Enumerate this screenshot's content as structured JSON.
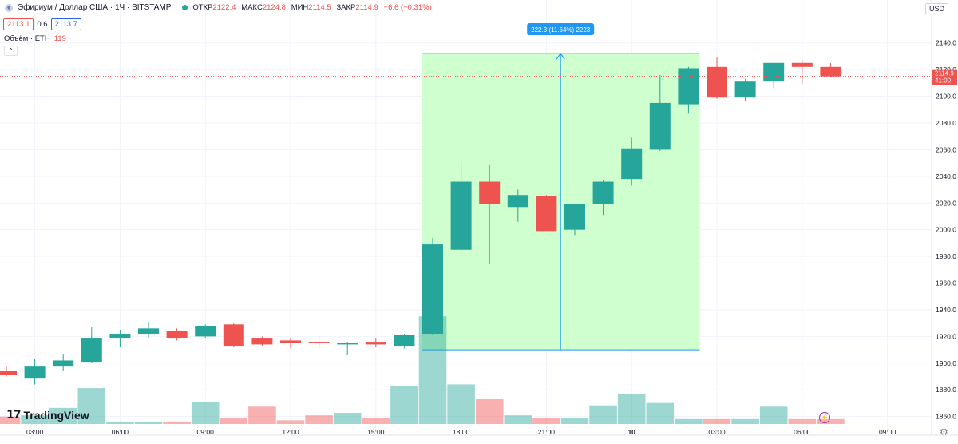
{
  "header": {
    "symbol": "Эфириум / Доллар США · 1Ч · BITSTAMP",
    "open_label": "ОТКР",
    "open": "2122.4",
    "high_label": "МАКС",
    "high": "2124.8",
    "low_label": "МИН",
    "low": "2114.5",
    "close_label": "ЗАКР",
    "close": "2114.9",
    "change": "−6.6 (−0.31%)"
  },
  "quote": {
    "bid": "2113.1",
    "spread": "0.6",
    "ask": "2113.7"
  },
  "volume_indicator": {
    "label": "Объём · ETH",
    "value": "119"
  },
  "collapse_glyph": "⌃",
  "currency": "USD",
  "logo": {
    "mark": "17",
    "text": "TradingView"
  },
  "lightning_glyph": "⚡",
  "gear_glyph": "⚙",
  "colors": {
    "up": "#26a69a",
    "down": "#ef5350",
    "up_vol": "#26a69a",
    "down_vol": "#ef5350",
    "measure_fill": "#ccffcc",
    "measure_line": "#2196f3",
    "grid": "#f0f3fa"
  },
  "chart_data": {
    "type": "candlestick",
    "interval": "1h",
    "y_axis": {
      "range": [
        1855,
        2150
      ],
      "ticks": [
        2140.0,
        2120.0,
        2100.0,
        2080.0,
        2060.0,
        2040.0,
        2020.0,
        2000.0,
        1980.0,
        1960.0,
        1940.0,
        1920.0,
        1900.0,
        1880.0,
        1860.0
      ]
    },
    "x_axis": {
      "ticks": [
        "03:00",
        "06:00",
        "09:00",
        "12:00",
        "15:00",
        "18:00",
        "21:00",
        "10",
        "03:00",
        "06:00",
        "09:00"
      ],
      "tick_bars": [
        1,
        4,
        7,
        10,
        13,
        16,
        19,
        22,
        25,
        28,
        31
      ]
    },
    "candles": [
      {
        "o": 1894,
        "h": 1898,
        "l": 1890,
        "c": 1891
      },
      {
        "o": 1889,
        "h": 1903,
        "l": 1884,
        "c": 1898
      },
      {
        "o": 1898,
        "h": 1907,
        "l": 1894,
        "c": 1902
      },
      {
        "o": 1901,
        "h": 1927,
        "l": 1900,
        "c": 1919
      },
      {
        "o": 1919,
        "h": 1925,
        "l": 1912,
        "c": 1922
      },
      {
        "o": 1922,
        "h": 1931,
        "l": 1919,
        "c": 1926
      },
      {
        "o": 1924,
        "h": 1926,
        "l": 1917,
        "c": 1919
      },
      {
        "o": 1920,
        "h": 1929,
        "l": 1919,
        "c": 1928
      },
      {
        "o": 1929,
        "h": 1930,
        "l": 1912,
        "c": 1913
      },
      {
        "o": 1919,
        "h": 1920,
        "l": 1913,
        "c": 1914
      },
      {
        "o": 1917,
        "h": 1919,
        "l": 1911,
        "c": 1915
      },
      {
        "o": 1916,
        "h": 1920,
        "l": 1911,
        "c": 1915
      },
      {
        "o": 1914,
        "h": 1916,
        "l": 1906,
        "c": 1915
      },
      {
        "o": 1916,
        "h": 1919,
        "l": 1912,
        "c": 1914
      },
      {
        "o": 1913,
        "h": 1922,
        "l": 1911,
        "c": 1921
      },
      {
        "o": 1922,
        "h": 1994,
        "l": 1921,
        "c": 1989
      },
      {
        "o": 1985,
        "h": 2051,
        "l": 1983,
        "c": 2036
      },
      {
        "o": 2036,
        "h": 2049,
        "l": 1974,
        "c": 2019
      },
      {
        "o": 2017,
        "h": 2030,
        "l": 2006,
        "c": 2026
      },
      {
        "o": 2025,
        "h": 2026,
        "l": 1999,
        "c": 1999
      },
      {
        "o": 2000,
        "h": 2019,
        "l": 1996,
        "c": 2019
      },
      {
        "o": 2019,
        "h": 2037,
        "l": 2011,
        "c": 2036
      },
      {
        "o": 2038,
        "h": 2069,
        "l": 2033,
        "c": 2061
      },
      {
        "o": 2060,
        "h": 2116,
        "l": 2059,
        "c": 2095
      },
      {
        "o": 2094,
        "h": 2122,
        "l": 2087,
        "c": 2121
      },
      {
        "o": 2122,
        "h": 2129,
        "l": 2098,
        "c": 2099
      },
      {
        "o": 2099,
        "h": 2113,
        "l": 2096,
        "c": 2111
      },
      {
        "o": 2111,
        "h": 2125,
        "l": 2106,
        "c": 2125
      },
      {
        "o": 2125,
        "h": 2127,
        "l": 2109,
        "c": 2122
      },
      {
        "o": 2122,
        "h": 2125,
        "l": 2114,
        "c": 2114.9
      }
    ],
    "volumes": [
      6,
      7,
      13,
      29,
      2,
      2,
      2,
      18,
      5,
      14,
      3,
      7,
      9,
      5,
      31,
      87,
      32,
      20,
      7,
      5,
      5,
      15,
      24,
      17,
      4,
      4,
      4,
      14,
      4,
      4
    ],
    "measure": {
      "from_bar": 15,
      "to_bar": 24,
      "low": 1910,
      "high": 2132,
      "label": "222.3 (11.64%) 2223"
    },
    "last_price": {
      "value": "2114.9",
      "countdown": "41:00"
    }
  }
}
